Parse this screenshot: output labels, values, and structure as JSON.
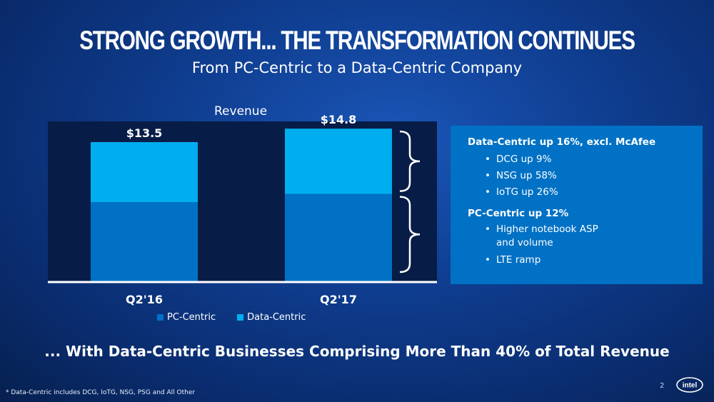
{
  "title": "STRONG GROWTH... THE TRANSFORMATION CONTINUES",
  "subtitle": "From PC-Centric to a Data-Centric Company",
  "chart_data": {
    "type": "bar",
    "stacked": true,
    "title": "Revenue",
    "categories": [
      "Q2'16",
      "Q2'17"
    ],
    "totals_labels": [
      "$13.5",
      "$14.8"
    ],
    "totals": [
      13.5,
      14.8
    ],
    "series": [
      {
        "name": "PC-Centric",
        "values": [
          7.7,
          8.5
        ],
        "color": "#0071c5"
      },
      {
        "name": "Data-Centric",
        "values": [
          5.8,
          6.3
        ],
        "color": "#00aeef"
      }
    ],
    "ylim": [
      0,
      15.5
    ],
    "legend": "bottom"
  },
  "callout": {
    "data_centric_head": "Data-Centric up 16%, excl. McAfee",
    "data_centric_items": [
      "DCG up 9%",
      "NSG up 58%",
      "IoTG up 26%"
    ],
    "pc_centric_head": "PC-Centric up 12%",
    "pc_centric_items": [
      "Higher notebook ASP\nand volume",
      "LTE ramp"
    ]
  },
  "conclusion": "... With Data-Centric Businesses Comprising More Than 40% of Total Revenue",
  "footnote": "* Data-Centric includes DCG, IoTG, NSG, PSG and All Other",
  "page_number": "2",
  "logo_text": "intel"
}
